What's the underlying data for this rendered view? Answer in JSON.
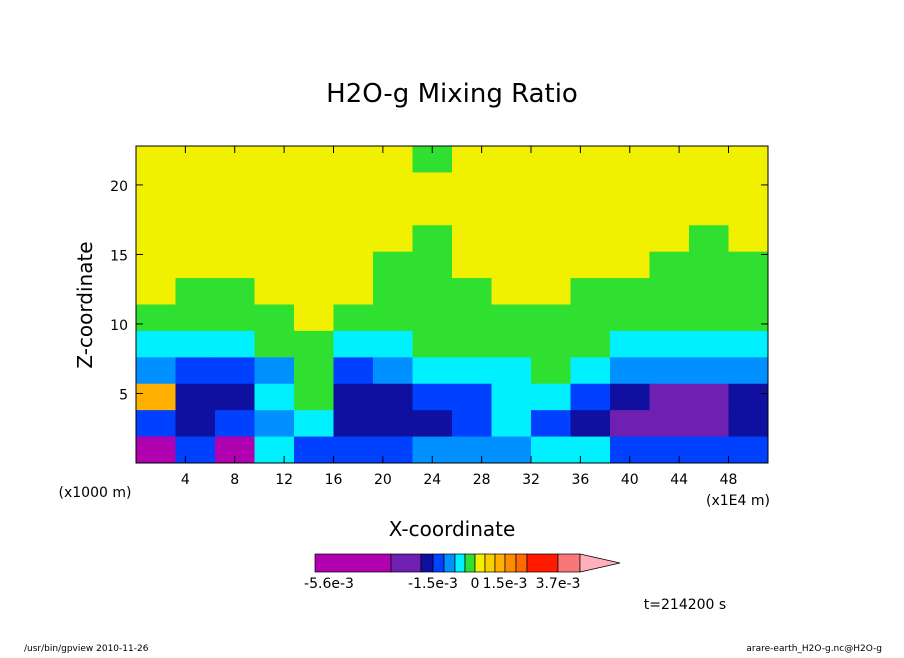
{
  "chart_data": {
    "type": "contour",
    "title": "H2O-g Mixing Ratio",
    "xlabel": "X-coordinate",
    "ylabel": "Z-coordinate",
    "x_unit_label": "(x1E4 m)",
    "y_unit_label": "(x1000 m)",
    "time_label": "t=214200 s",
    "footer_left": "/usr/bin/gpview  2010-11-26",
    "footer_right": "arare-earth_H2O-g.nc@H2O-g",
    "xlim": [
      0,
      51.2
    ],
    "ylim": [
      0,
      22.8
    ],
    "xticks": [
      4,
      8,
      12,
      16,
      20,
      24,
      28,
      32,
      36,
      40,
      44,
      48
    ],
    "yticks": [
      5,
      10,
      15,
      20
    ],
    "x_bins": [
      0,
      3.2,
      6.4,
      9.6,
      12.8,
      16,
      19.2,
      22.4,
      25.6,
      28.8,
      32,
      35.2,
      38.4,
      41.6,
      44.8,
      48,
      51.2
    ],
    "z_bins": [
      22.8,
      20.9,
      19,
      17.1,
      15.2,
      13.3,
      11.4,
      9.5,
      7.6,
      5.7,
      3.8,
      1.9,
      0
    ],
    "z_values": [
      [
        0.0002,
        0.0002,
        0.0002,
        0.0002,
        0.0002,
        0.0002,
        0.0002,
        -0.0001,
        0.0002,
        0.0002,
        0.0002,
        0.0002,
        0.0002,
        0.0002,
        0.0002,
        0.0002
      ],
      [
        0.0002,
        0.0002,
        0.0002,
        0.0002,
        0.0002,
        0.0002,
        0.0002,
        0.0002,
        0.0002,
        0.0002,
        0.0002,
        0.0002,
        0.0002,
        0.0002,
        0.0002,
        0.0002
      ],
      [
        0.0002,
        0.0002,
        0.0002,
        0.0002,
        0.0002,
        0.0002,
        0.0002,
        0.0002,
        0.0002,
        0.0002,
        0.0002,
        0.0002,
        0.0002,
        0.0002,
        0.0002,
        0.0002
      ],
      [
        0.0002,
        0.0002,
        0.0002,
        0.0002,
        0.0002,
        0.0002,
        0.0002,
        -0.0001,
        0.0002,
        0.0002,
        0.0002,
        0.0002,
        0.0002,
        0.0002,
        -0.0001,
        0.0002
      ],
      [
        0.0002,
        0.0002,
        0.0002,
        0.0002,
        0.0002,
        0.0002,
        -0.0001,
        -0.0001,
        0.0002,
        0.0002,
        0.0002,
        0.0002,
        0.0002,
        -0.0001,
        -0.0001,
        -0.0001
      ],
      [
        0.0002,
        -0.0001,
        -0.0001,
        0.0002,
        0.0002,
        0.0002,
        -0.0001,
        -0.0001,
        -0.0001,
        0.0002,
        0.0002,
        -0.0001,
        -0.0001,
        -0.0001,
        -0.0001,
        -0.0001
      ],
      [
        -0.0001,
        -0.0001,
        -0.0001,
        -0.0001,
        0.0002,
        -0.0001,
        -0.0001,
        -0.0001,
        -0.0001,
        -0.0001,
        -0.0001,
        -0.0001,
        -0.0001,
        -0.0001,
        -0.0001,
        -0.0001
      ],
      [
        -0.0003,
        -0.0003,
        -0.0003,
        -0.0001,
        -0.0001,
        -0.0003,
        -0.0003,
        -0.0001,
        -0.0001,
        -0.0001,
        -0.0001,
        -0.0001,
        -0.0003,
        -0.0003,
        -0.0003,
        -0.0003
      ],
      [
        -0.0007,
        -0.0012,
        -0.0012,
        -0.0007,
        -0.0001,
        -0.0012,
        -0.0007,
        -0.0003,
        -0.0003,
        -0.0003,
        -0.0001,
        -0.0003,
        -0.0007,
        -0.0007,
        -0.0007,
        -0.0007
      ],
      [
        0.0012,
        -0.0017,
        -0.0017,
        -0.0003,
        -0.0001,
        -0.0017,
        -0.0017,
        -0.0012,
        -0.0012,
        -0.0003,
        -0.0003,
        -0.0012,
        -0.0017,
        -0.0022,
        -0.0022,
        -0.0017
      ],
      [
        -0.0012,
        -0.0017,
        -0.0012,
        -0.0007,
        -0.0003,
        -0.0017,
        -0.0017,
        -0.0017,
        -0.0012,
        -0.0003,
        -0.0012,
        -0.0017,
        -0.0022,
        -0.0022,
        -0.0022,
        -0.0017
      ],
      [
        -0.003,
        -0.0012,
        -0.003,
        -0.0003,
        -0.0012,
        -0.0012,
        -0.0012,
        -0.0007,
        -0.0007,
        -0.0007,
        -0.0003,
        -0.0003,
        -0.0012,
        -0.0012,
        -0.0012,
        -0.0012
      ]
    ],
    "levels": [
      -0.0056,
      -0.0025,
      -0.002,
      -0.0015,
      -0.001,
      -0.0005,
      -0.0002,
      0,
      0.0005,
      0.001,
      0.0015,
      0.002,
      0.003,
      0.0037,
      0.0045
    ],
    "level_colors": [
      "#b000b0",
      "#7020b0",
      "#1010a0",
      "#0040ff",
      "#0090ff",
      "#00f0ff",
      "#30e030",
      "#f0f000",
      "#f8d000",
      "#ffb000",
      "#ff8c00",
      "#ff6a00",
      "#ff1a00",
      "#f87878"
    ],
    "extend_color": "#ffb0b8",
    "colorbar_ticks": [
      {
        "value": -0.0056,
        "label": "-5.6e-3"
      },
      {
        "value": -0.0015,
        "label": "-1.5e-3"
      },
      0,
      {
        "value": 0.0015,
        "label": "1.5e-3"
      },
      {
        "value": 0.0037,
        "label": "3.7e-3"
      }
    ]
  }
}
